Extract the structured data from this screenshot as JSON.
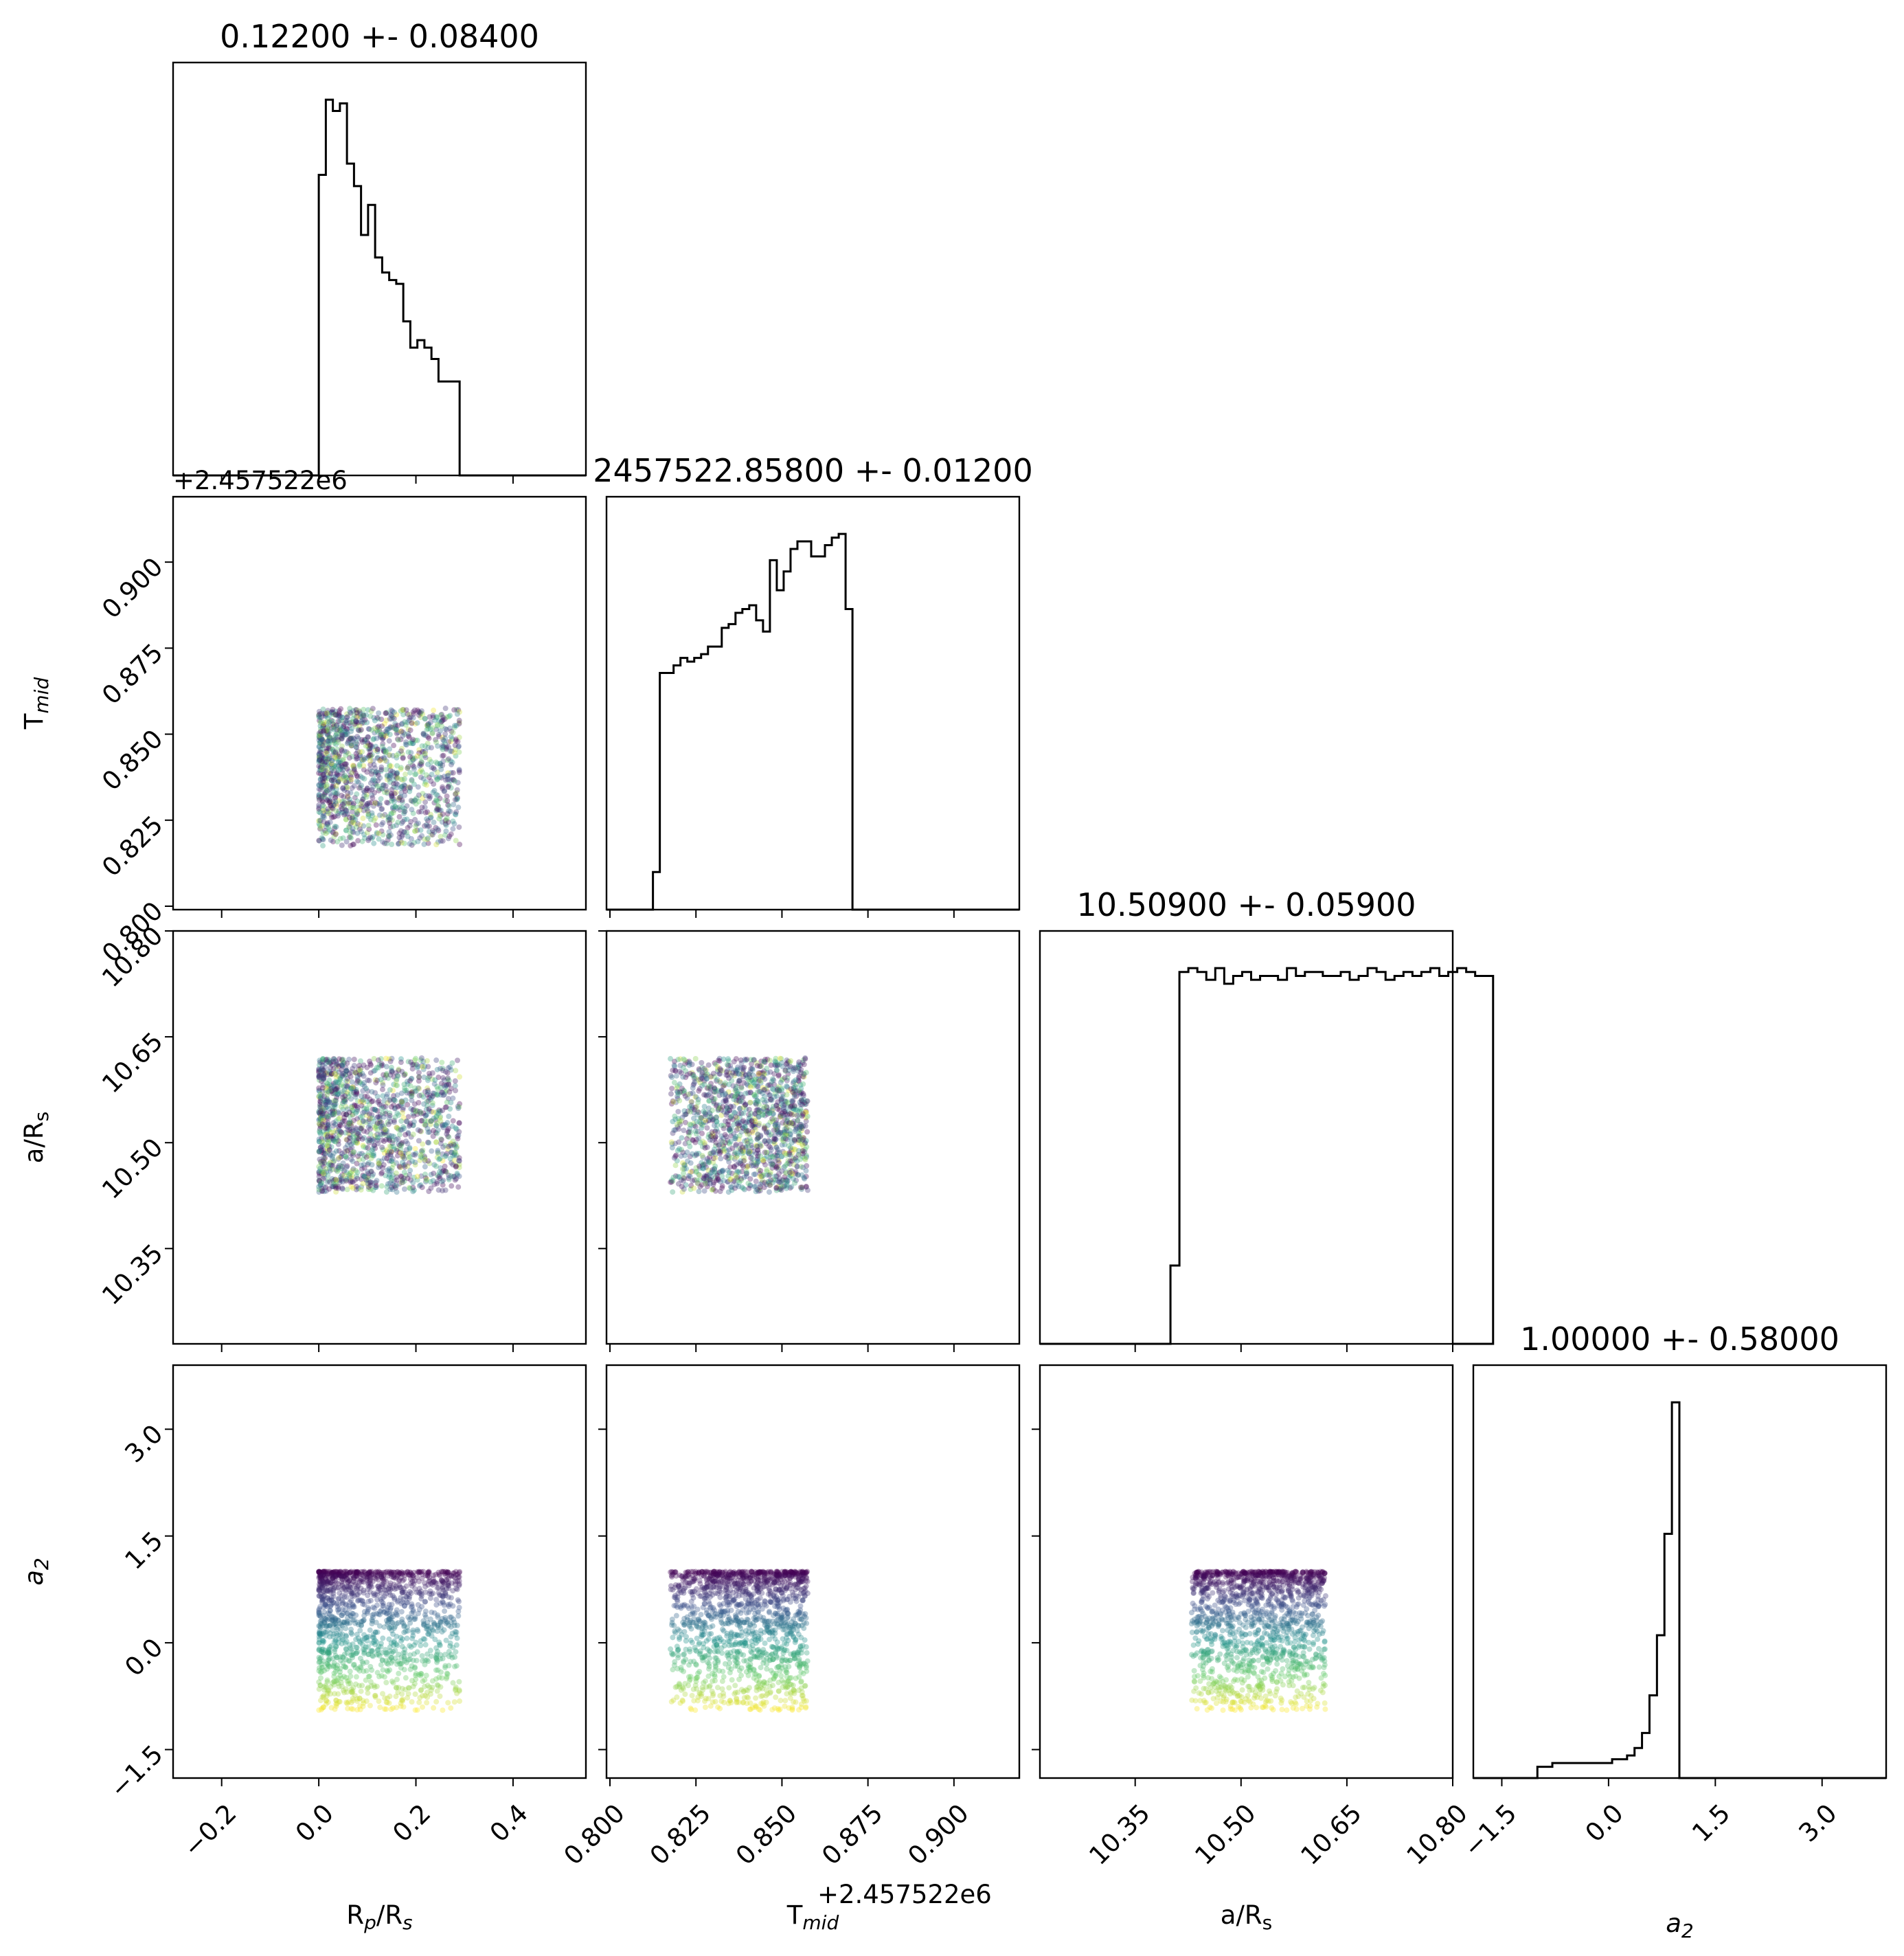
{
  "chart_data": {
    "type": "scatter",
    "subtype": "corner-plot",
    "parameters": [
      {
        "key": "rp",
        "label": "R_p/R_s",
        "title": "0.12200 +- 0.08400",
        "range": [
          -0.3,
          0.55
        ],
        "ticks": [
          -0.2,
          0.0,
          0.2,
          0.4
        ],
        "tick_labels": [
          "−0.2",
          "0.0",
          "0.2",
          "0.4"
        ],
        "offset_text": ""
      },
      {
        "key": "tmid",
        "label": "T_mid",
        "title": "2457522.85800 +- 0.01200",
        "range": [
          0.799,
          0.919
        ],
        "ticks": [
          0.8,
          0.825,
          0.85,
          0.875,
          0.9
        ],
        "tick_labels": [
          "0.800",
          "0.825",
          "0.850",
          "0.875",
          "0.900"
        ],
        "offset_text": "+2.457522e6"
      },
      {
        "key": "ars",
        "label": "a/R_s",
        "title": "10.50900 +- 0.05900",
        "range": [
          0.0,
          1.0
        ],
        "ticks": [
          10.35,
          10.5,
          10.65,
          10.8
        ],
        "tick_labels": [
          "10.35",
          "10.50",
          "10.65",
          "10.80"
        ],
        "offset_text": ""
      },
      {
        "key": "a2",
        "label": "a_2",
        "title": "1.00000 +- 0.58000",
        "range": [
          -1.9,
          3.9
        ],
        "ticks": [
          -1.5,
          0.0,
          1.5,
          3.0
        ],
        "tick_labels": [
          "−1.5",
          "0.0",
          "1.5",
          "3.0"
        ],
        "offset_text": ""
      }
    ],
    "ars_axis": {
      "data_min": 10.215,
      "data_max": 10.8
    },
    "histograms": {
      "rp": {
        "edges_start": 0.0,
        "bin_width": 0.0145,
        "counts": [
          0.8,
          1.0,
          0.97,
          0.99,
          0.83,
          0.77,
          0.64,
          0.72,
          0.58,
          0.54,
          0.52,
          0.51,
          0.41,
          0.34,
          0.36,
          0.34,
          0.31,
          0.25,
          0.25,
          0.25
        ]
      },
      "tmid": {
        "edges_start": 0.8125,
        "bin_width": 0.002,
        "counts": [
          0.1,
          0.63,
          0.63,
          0.65,
          0.67,
          0.66,
          0.67,
          0.68,
          0.7,
          0.7,
          0.75,
          0.76,
          0.79,
          0.8,
          0.81,
          0.77,
          0.74,
          0.93,
          0.85,
          0.9,
          0.96,
          0.98,
          0.98,
          0.94,
          0.94,
          0.97,
          0.99,
          1.0,
          0.8
        ]
      },
      "ars": {
        "edges_start": 10.4,
        "bin_width": 0.0127,
        "counts": [
          0.2,
          0.95,
          0.96,
          0.95,
          0.93,
          0.96,
          0.92,
          0.94,
          0.95,
          0.93,
          0.94,
          0.94,
          0.93,
          0.96,
          0.94,
          0.95,
          0.95,
          0.94,
          0.94,
          0.95,
          0.93,
          0.94,
          0.96,
          0.95,
          0.93,
          0.94,
          0.95,
          0.94,
          0.95,
          0.96,
          0.94,
          0.95,
          0.96,
          0.95,
          0.94,
          0.94
        ]
      },
      "a2": {
        "edges_start": -1.0,
        "bin_width": 0.105,
        "counts": [
          0.03,
          0.03,
          0.04,
          0.04,
          0.04,
          0.04,
          0.04,
          0.04,
          0.04,
          0.04,
          0.05,
          0.05,
          0.06,
          0.08,
          0.12,
          0.22,
          0.38,
          0.65,
          1.0
        ]
      }
    },
    "scatter_samples": {
      "rp": [
        0.0,
        0.29
      ],
      "tmid": [
        0.8175,
        0.8575
      ],
      "ars": [
        10.43,
        10.62
      ],
      "a2": [
        -0.95,
        1.0
      ],
      "n_points": 1400,
      "alpha": 0.35
    },
    "colormap": [
      "#440154",
      "#3b528b",
      "#21918c",
      "#5ec962",
      "#fde725"
    ],
    "grid": false,
    "legend": "none"
  }
}
